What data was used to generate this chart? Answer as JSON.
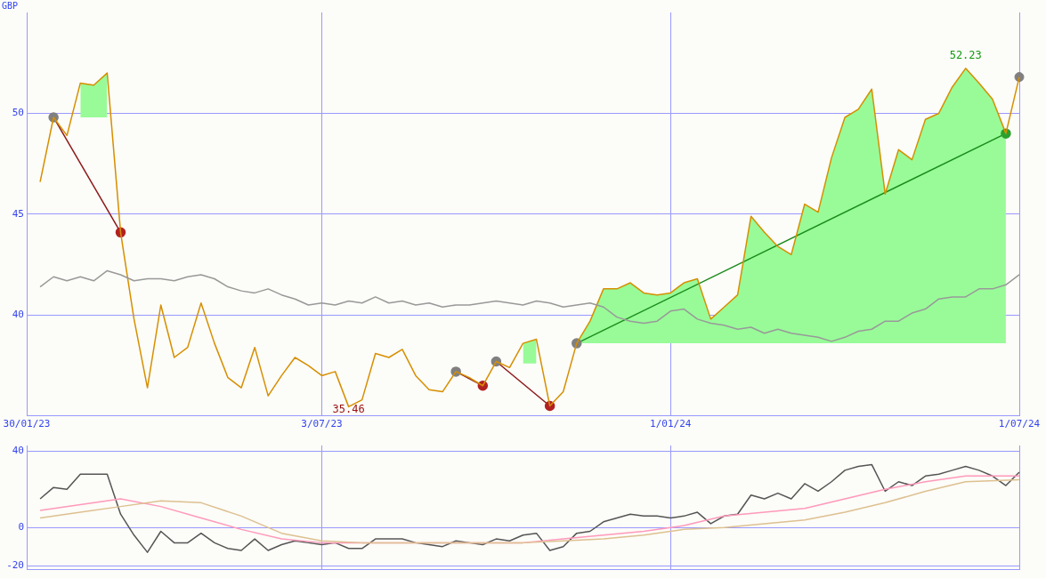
{
  "chart_data": [
    {
      "type": "line",
      "ylabel": "GBP",
      "x": [
        "2023-02-06",
        "2023-02-13",
        "2023-02-20",
        "2023-02-27",
        "2023-03-06",
        "2023-03-13",
        "2023-03-20",
        "2023-03-27",
        "2023-04-03",
        "2023-04-10",
        "2023-04-17",
        "2023-04-24",
        "2023-05-01",
        "2023-05-08",
        "2023-05-15",
        "2023-05-22",
        "2023-05-29",
        "2023-06-05",
        "2023-06-12",
        "2023-06-19",
        "2023-06-26",
        "2023-07-03",
        "2023-07-10",
        "2023-07-17",
        "2023-07-24",
        "2023-07-31",
        "2023-08-07",
        "2023-08-14",
        "2023-08-21",
        "2023-08-28",
        "2023-09-04",
        "2023-09-11",
        "2023-09-18",
        "2023-09-25",
        "2023-10-02",
        "2023-10-09",
        "2023-10-16",
        "2023-10-23",
        "2023-10-30",
        "2023-11-06",
        "2023-11-13",
        "2023-11-20",
        "2023-11-27",
        "2023-12-04",
        "2023-12-11",
        "2023-12-18",
        "2023-12-25",
        "2024-01-01",
        "2024-01-08",
        "2024-01-15",
        "2024-01-22",
        "2024-01-29",
        "2024-02-05",
        "2024-02-12",
        "2024-02-19",
        "2024-02-26",
        "2024-03-04",
        "2024-03-11",
        "2024-03-18",
        "2024-03-25",
        "2024-04-01",
        "2024-04-08",
        "2024-04-15",
        "2024-04-22",
        "2024-04-29",
        "2024-05-06",
        "2024-05-13",
        "2024-05-20",
        "2024-05-27",
        "2024-06-03",
        "2024-06-10",
        "2024-06-17",
        "2024-06-24",
        "2024-07-01"
      ],
      "xlim": [
        "2023-01-30",
        "2024-07-01"
      ],
      "xticks": [
        {
          "value": "2023-01-30",
          "label": "30/01/23"
        },
        {
          "value": "2023-07-03",
          "label": "3/07/23"
        },
        {
          "value": "2024-01-01",
          "label": "1/01/24"
        },
        {
          "value": "2024-07-01",
          "label": "1/07/24"
        }
      ],
      "ylim": [
        35,
        55
      ],
      "yticks": [
        40,
        45,
        50
      ],
      "grid": true,
      "legend": false,
      "annotations": [
        {
          "text": "52.23",
          "x": "2024-06-03",
          "y": 52.23
        },
        {
          "text": "35.46",
          "x": "2023-07-17",
          "y": 35.46
        }
      ],
      "series": [
        {
          "type": "line",
          "color": "#999999",
          "values": [
            41.4,
            41.9,
            41.7,
            41.9,
            41.7,
            42.2,
            42.0,
            41.7,
            41.8,
            41.8,
            41.7,
            41.9,
            42.0,
            41.8,
            41.4,
            41.2,
            41.1,
            41.3,
            41.0,
            40.8,
            40.5,
            40.6,
            40.5,
            40.7,
            40.6,
            40.9,
            40.6,
            40.7,
            40.5,
            40.6,
            40.4,
            40.5,
            40.5,
            40.6,
            40.7,
            40.6,
            40.5,
            40.7,
            40.6,
            40.4,
            40.5,
            40.6,
            40.4,
            39.9,
            39.7,
            39.6,
            39.7,
            40.2,
            40.3,
            39.8,
            39.6,
            39.5,
            39.3,
            39.4,
            39.1,
            39.3,
            39.1,
            39.0,
            38.9,
            38.7,
            38.9,
            39.2,
            39.3,
            39.7,
            39.7,
            40.1,
            40.3,
            40.8,
            40.9,
            40.9,
            41.3,
            41.3,
            41.5,
            42.0
          ]
        },
        {
          "type": "line",
          "color": "#d68f00",
          "values": [
            46.6,
            49.8,
            48.9,
            51.5,
            51.4,
            52.0,
            44.1,
            39.8,
            36.4,
            40.5,
            37.9,
            38.4,
            40.6,
            38.6,
            36.9,
            36.4,
            38.4,
            36.0,
            37.0,
            37.9,
            37.5,
            37.0,
            37.2,
            35.46,
            35.8,
            38.1,
            37.9,
            38.3,
            37.0,
            36.3,
            36.2,
            37.2,
            36.9,
            36.5,
            37.7,
            37.4,
            38.6,
            38.8,
            35.5,
            36.2,
            38.6,
            39.7,
            41.3,
            41.3,
            41.6,
            41.1,
            41.0,
            41.1,
            41.6,
            41.8,
            39.8,
            40.4,
            41.0,
            44.9,
            44.1,
            43.4,
            43.0,
            45.5,
            45.1,
            47.8,
            49.8,
            50.2,
            51.2,
            46.0,
            48.2,
            47.7,
            49.7,
            50.0,
            51.3,
            52.23,
            51.5,
            50.7,
            49.0,
            51.8
          ],
          "lower": [
            null,
            null,
            null,
            49.8,
            49.8,
            49.8,
            null,
            null,
            null,
            null,
            null,
            null,
            null,
            null,
            null,
            null,
            null,
            null,
            null,
            null,
            null,
            null,
            null,
            null,
            null,
            null,
            null,
            null,
            null,
            null,
            null,
            null,
            null,
            null,
            null,
            null,
            37.6,
            37.6,
            null,
            null,
            38.6,
            38.6,
            38.6,
            38.6,
            38.6,
            38.6,
            38.6,
            38.6,
            38.6,
            38.6,
            38.6,
            38.6,
            38.6,
            38.6,
            38.6,
            38.6,
            38.6,
            38.6,
            38.6,
            38.6,
            38.6,
            38.6,
            38.6,
            38.6,
            38.6,
            38.6,
            38.6,
            38.6,
            38.6,
            38.6,
            38.6,
            38.6,
            38.6,
            null
          ],
          "upper": [
            null,
            null,
            null,
            51.5,
            51.4,
            52.0,
            null,
            null,
            null,
            null,
            null,
            null,
            null,
            null,
            null,
            null,
            null,
            null,
            null,
            null,
            null,
            null,
            null,
            null,
            null,
            null,
            null,
            null,
            null,
            null,
            null,
            null,
            null,
            null,
            null,
            null,
            38.6,
            38.8,
            null,
            null,
            38.6,
            39.7,
            41.3,
            41.3,
            41.6,
            41.1,
            41.0,
            41.1,
            41.6,
            41.8,
            39.8,
            40.4,
            41.0,
            44.9,
            44.1,
            43.4,
            43.0,
            45.5,
            45.1,
            47.8,
            49.8,
            50.2,
            51.2,
            46.0,
            48.2,
            47.7,
            49.7,
            50.0,
            51.3,
            52.23,
            51.5,
            50.7,
            49.0,
            null
          ]
        },
        {
          "type": "line",
          "color": "#8b1a1a",
          "marker": "circle",
          "x": [
            "2023-02-13",
            "2023-03-20"
          ],
          "values": [
            49.8,
            44.1
          ],
          "colors": [
            "#808080",
            "#b22222"
          ]
        },
        {
          "type": "line",
          "color": "#8b1a1a",
          "marker": "circle",
          "x": [
            "2023-09-11",
            "2023-09-25"
          ],
          "values": [
            37.2,
            36.5
          ],
          "colors": [
            "#808080",
            "#b22222"
          ]
        },
        {
          "type": "line",
          "color": "#8b1a1a",
          "marker": "circle",
          "x": [
            "2023-10-02",
            "2023-10-30"
          ],
          "values": [
            37.7,
            35.5
          ],
          "colors": [
            "#808080",
            "#b22222"
          ]
        },
        {
          "type": "line",
          "color": "#1a8c1a",
          "marker": "circle",
          "x": [
            "2023-11-13",
            "2024-06-24"
          ],
          "values": [
            38.6,
            49.0
          ],
          "colors": [
            "#808080",
            "#2ca02c"
          ]
        },
        {
          "type": "scatter",
          "color": "#808080",
          "marker": "circle",
          "x": [
            "2024-07-01"
          ],
          "values": [
            51.8
          ]
        }
      ]
    },
    {
      "type": "line",
      "tick_labels": "y",
      "grid": true,
      "legend": false,
      "x": [
        "2023-02-06",
        "2023-02-13",
        "2023-02-20",
        "2023-02-27",
        "2023-03-06",
        "2023-03-13",
        "2023-03-20",
        "2023-03-27",
        "2023-04-03",
        "2023-04-10",
        "2023-04-17",
        "2023-04-24",
        "2023-05-01",
        "2023-05-08",
        "2023-05-15",
        "2023-05-22",
        "2023-05-29",
        "2023-06-05",
        "2023-06-12",
        "2023-06-19",
        "2023-06-26",
        "2023-07-03",
        "2023-07-10",
        "2023-07-17",
        "2023-07-24",
        "2023-07-31",
        "2023-08-07",
        "2023-08-14",
        "2023-08-21",
        "2023-08-28",
        "2023-09-04",
        "2023-09-11",
        "2023-09-18",
        "2023-09-25",
        "2023-10-02",
        "2023-10-09",
        "2023-10-16",
        "2023-10-23",
        "2023-10-30",
        "2023-11-06",
        "2023-11-13",
        "2023-11-20",
        "2023-11-27",
        "2023-12-04",
        "2023-12-11",
        "2023-12-18",
        "2023-12-25",
        "2024-01-01",
        "2024-01-08",
        "2024-01-15",
        "2024-01-22",
        "2024-01-29",
        "2024-02-05",
        "2024-02-12",
        "2024-02-19",
        "2024-02-26",
        "2024-03-04",
        "2024-03-11",
        "2024-03-18",
        "2024-03-25",
        "2024-04-01",
        "2024-04-08",
        "2024-04-15",
        "2024-04-22",
        "2024-04-29",
        "2024-05-06",
        "2024-05-13",
        "2024-05-20",
        "2024-05-27",
        "2024-06-03",
        "2024-06-10",
        "2024-06-17",
        "2024-06-24",
        "2024-07-01"
      ],
      "xlim": [
        "2023-01-30",
        "2024-07-01"
      ],
      "xticks": [
        {
          "value": "2023-01-30",
          "label": null
        },
        {
          "value": "2023-07-03",
          "label": null
        },
        {
          "value": "2024-01-01",
          "label": null
        },
        {
          "value": "2024-07-01",
          "label": null
        }
      ],
      "ylim": [
        -22,
        43
      ],
      "yticks": [
        -20,
        0,
        40
      ],
      "series": [
        {
          "type": "line",
          "color": "#ddc090",
          "x": [
            "2023-02-06",
            "2023-02-27",
            "2023-03-20",
            "2023-04-10",
            "2023-05-01",
            "2023-05-22",
            "2023-06-12",
            "2023-07-03",
            "2023-07-24",
            "2023-08-14",
            "2023-09-04",
            "2023-09-25",
            "2023-10-16",
            "2023-11-06",
            "2023-11-27",
            "2023-12-18",
            "2024-01-08",
            "2024-01-29",
            "2024-02-19",
            "2024-03-11",
            "2024-04-01",
            "2024-04-22",
            "2024-05-13",
            "2024-06-03",
            "2024-07-01"
          ],
          "values": [
            5,
            8,
            11,
            14,
            13,
            6,
            -3,
            -7,
            -8,
            -8,
            -8,
            -8,
            -8,
            -7,
            -6,
            -4,
            -1,
            0,
            2,
            4,
            8,
            13,
            19,
            24,
            25
          ]
        },
        {
          "type": "line",
          "color": "#ff99bb",
          "x": [
            "2023-02-06",
            "2023-02-27",
            "2023-03-20",
            "2023-04-10",
            "2023-05-01",
            "2023-05-22",
            "2023-06-12",
            "2023-07-03",
            "2023-07-24",
            "2023-08-14",
            "2023-09-04",
            "2023-09-25",
            "2023-10-16",
            "2023-11-06",
            "2023-11-27",
            "2023-12-18",
            "2024-01-08",
            "2024-01-29",
            "2024-02-19",
            "2024-03-11",
            "2024-04-01",
            "2024-04-22",
            "2024-05-13",
            "2024-06-03",
            "2024-07-01"
          ],
          "values": [
            9,
            12,
            15,
            11,
            5,
            -1,
            -6,
            -8,
            -8,
            -8,
            -8,
            -8,
            -8,
            -6,
            -4,
            -2,
            1,
            6,
            8,
            10,
            15,
            20,
            24,
            27,
            27
          ]
        },
        {
          "type": "line",
          "color": "#555555",
          "values": [
            15,
            21,
            20,
            28,
            28,
            28,
            7,
            -4,
            -13,
            -2,
            -8,
            -8,
            -3,
            -8,
            -11,
            -12,
            -6,
            -12,
            -9,
            -7,
            -8,
            -9,
            -8,
            -11,
            -11,
            -6,
            -6,
            -6,
            -8,
            -9,
            -10,
            -7,
            -8,
            -9,
            -6,
            -7,
            -4,
            -3,
            -12,
            -10,
            -3,
            -2,
            3,
            5,
            7,
            6,
            6,
            5,
            6,
            8,
            2,
            6,
            7,
            17,
            15,
            18,
            15,
            23,
            19,
            24,
            30,
            32,
            33,
            19,
            24,
            22,
            27,
            28,
            30,
            32,
            30,
            27,
            22,
            29
          ]
        }
      ]
    }
  ]
}
